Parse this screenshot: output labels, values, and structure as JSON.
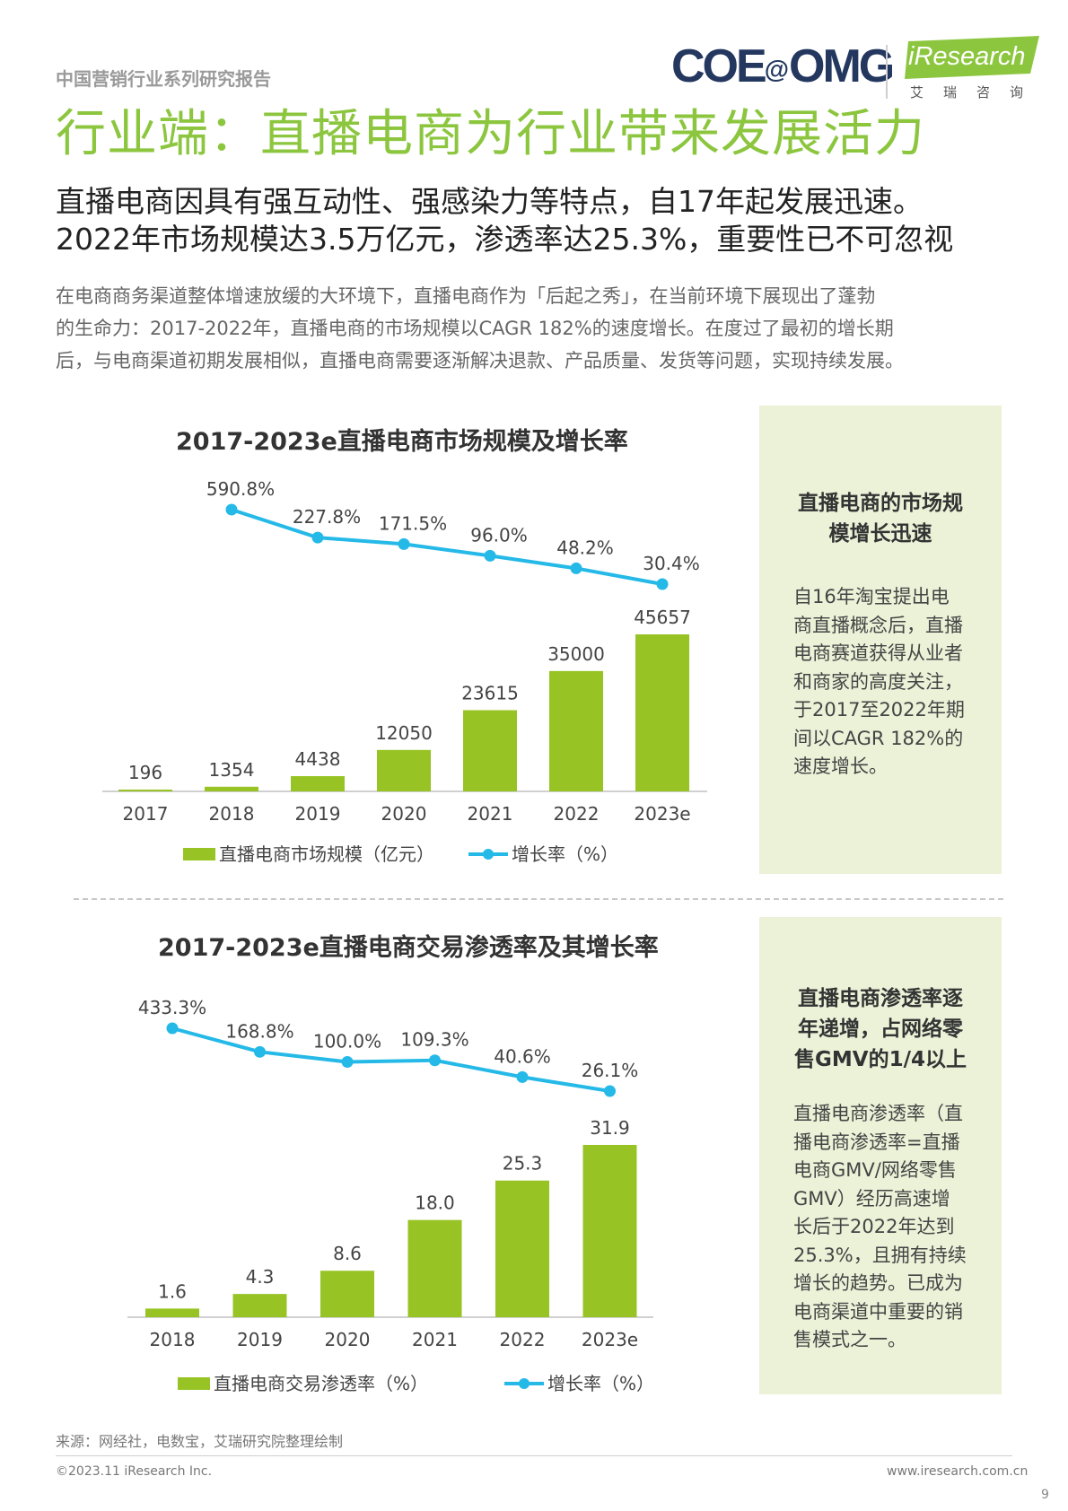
{
  "header": {
    "series_name": "中国营销行业系列研究报告",
    "logo_coe_main": "COE",
    "logo_coe_at": "@",
    "logo_coe_tail": "OMG",
    "logo_iresearch": "iResearch",
    "logo_iresearch_cn": "艾瑞咨询"
  },
  "title": "行业端：直播电商为行业带来发展活力",
  "subtitle": {
    "line1": "直播电商因具有强互动性、强感染力等特点，自17年起发展迅速。",
    "line2": "2022年市场规模达3.5万亿元，渗透率达25.3%，重要性已不可忽视"
  },
  "body": {
    "line1": "在电商商务渠道整体增速放缓的大环境下，直播电商作为「后起之秀」，在当前环境下展现出了蓬勃",
    "line2": "的生命力：2017-2022年，直播电商的市场规模以CAGR 182%的速度增长。在度过了最初的增长期",
    "line3": "后，与电商渠道初期发展相似，直播电商需要逐渐解决退款、产品质量、发货等问题，实现持续发展。"
  },
  "panel1": {
    "heading_line1": "直播电商的市场规",
    "heading_line2": "模增长迅速",
    "text_lines": [
      "自16年淘宝提出电",
      "商直播概念后，直播",
      "电商赛道获得从业者",
      "和商家的高度关注，",
      "于2017至2022年期",
      "间以CAGR 182%的",
      "速度增长。"
    ]
  },
  "panel2": {
    "heading_line1": "直播电商渗透率逐",
    "heading_line2": "年递增，占网络零",
    "heading_line3": "售GMV的1/4以上",
    "text_lines": [
      "直播电商渗透率（直",
      "播电商渗透率=直播",
      "电商GMV/网络零售",
      "GMV）经历高速增",
      "长后于2022年达到",
      "25.3%，且拥有持续",
      "增长的趋势。已成为",
      "电商渠道中重要的销",
      "售模式之一。"
    ]
  },
  "colors": {
    "bar": "#97c424",
    "line": "#25b9e8",
    "title_green": "#8cc63f",
    "panel_bg": "#ebf2d8"
  },
  "chart_data": [
    {
      "type": "bar",
      "title": "2017-2023e直播电商市场规模及增长率",
      "categories": [
        "2017",
        "2018",
        "2019",
        "2020",
        "2021",
        "2022",
        "2023e"
      ],
      "series": [
        {
          "name": "直播电商市场规模（亿元）",
          "type": "bar",
          "values": [
            196,
            1354,
            4438,
            12050,
            23615,
            35000,
            45657
          ],
          "labels": [
            "196",
            "1354",
            "4438",
            "12050",
            "23615",
            "35000",
            "45657"
          ]
        },
        {
          "name": "增长率（%）",
          "type": "line",
          "values": [
            null,
            590.8,
            227.8,
            171.5,
            96.0,
            48.2,
            30.4
          ],
          "labels": [
            "",
            "590.8%",
            "227.8%",
            "171.5%",
            "96.0%",
            "48.2%",
            "30.4%"
          ]
        }
      ],
      "legend": "bottom"
    },
    {
      "type": "bar",
      "title": "2017-2023e直播电商交易渗透率及其增长率",
      "categories": [
        "2018",
        "2019",
        "2020",
        "2021",
        "2022",
        "2023e"
      ],
      "series": [
        {
          "name": "直播电商交易渗透率（%）",
          "type": "bar",
          "values": [
            1.6,
            4.3,
            8.6,
            18.0,
            25.3,
            31.9
          ],
          "labels": [
            "1.6",
            "4.3",
            "8.6",
            "18.0",
            "25.3",
            "31.9"
          ]
        },
        {
          "name": "增长率（%）",
          "type": "line",
          "values": [
            433.3,
            168.8,
            100.0,
            109.3,
            40.6,
            26.1
          ],
          "labels": [
            "433.3%",
            "168.8%",
            "100.0%",
            "109.3%",
            "40.6%",
            "26.1%"
          ]
        }
      ],
      "legend": "bottom"
    }
  ],
  "footer": {
    "source": "来源：网经社，电数宝，艾瑞研究院整理绘制",
    "copyright": "©2023.11 iResearch Inc.",
    "url": "www.iresearch.com.cn",
    "page": "9"
  }
}
